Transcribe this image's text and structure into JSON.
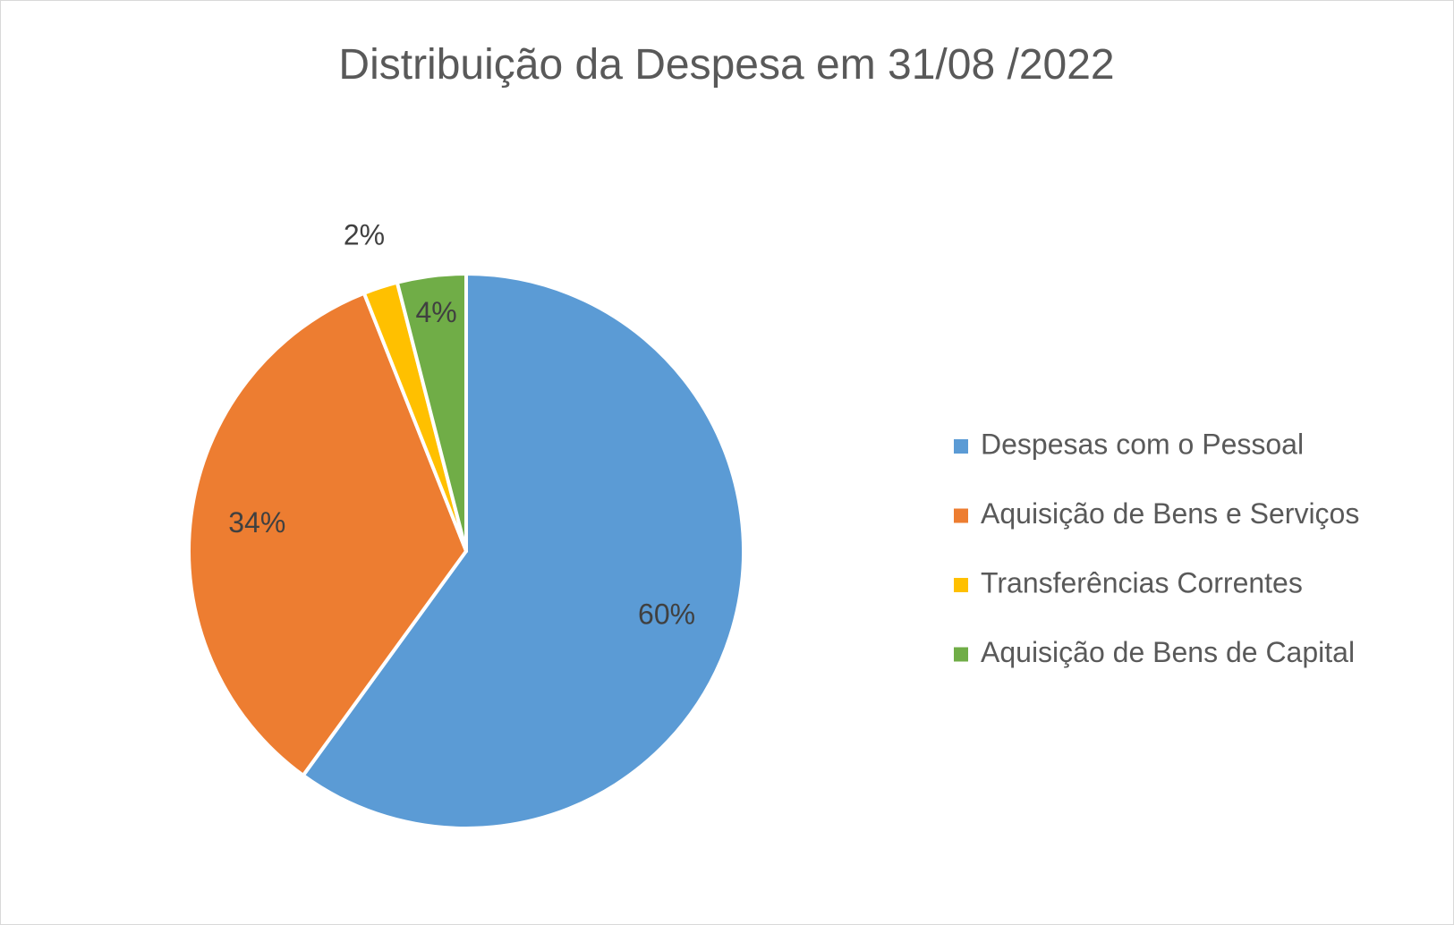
{
  "chart_data": {
    "type": "pie",
    "title": "Distribuição da Despesa em 31/08 /2022",
    "categories": [
      "Despesas com o Pessoal",
      "Aquisição de Bens e Serviços",
      "Transferências Correntes",
      "Aquisição de Bens de Capital"
    ],
    "values": [
      60,
      34,
      2,
      4
    ],
    "value_labels": [
      "60%",
      "34%",
      "2%",
      "4%"
    ],
    "colors": [
      "#5b9bd5",
      "#ed7d31",
      "#ffc000",
      "#70ad47"
    ],
    "legend": "right"
  }
}
